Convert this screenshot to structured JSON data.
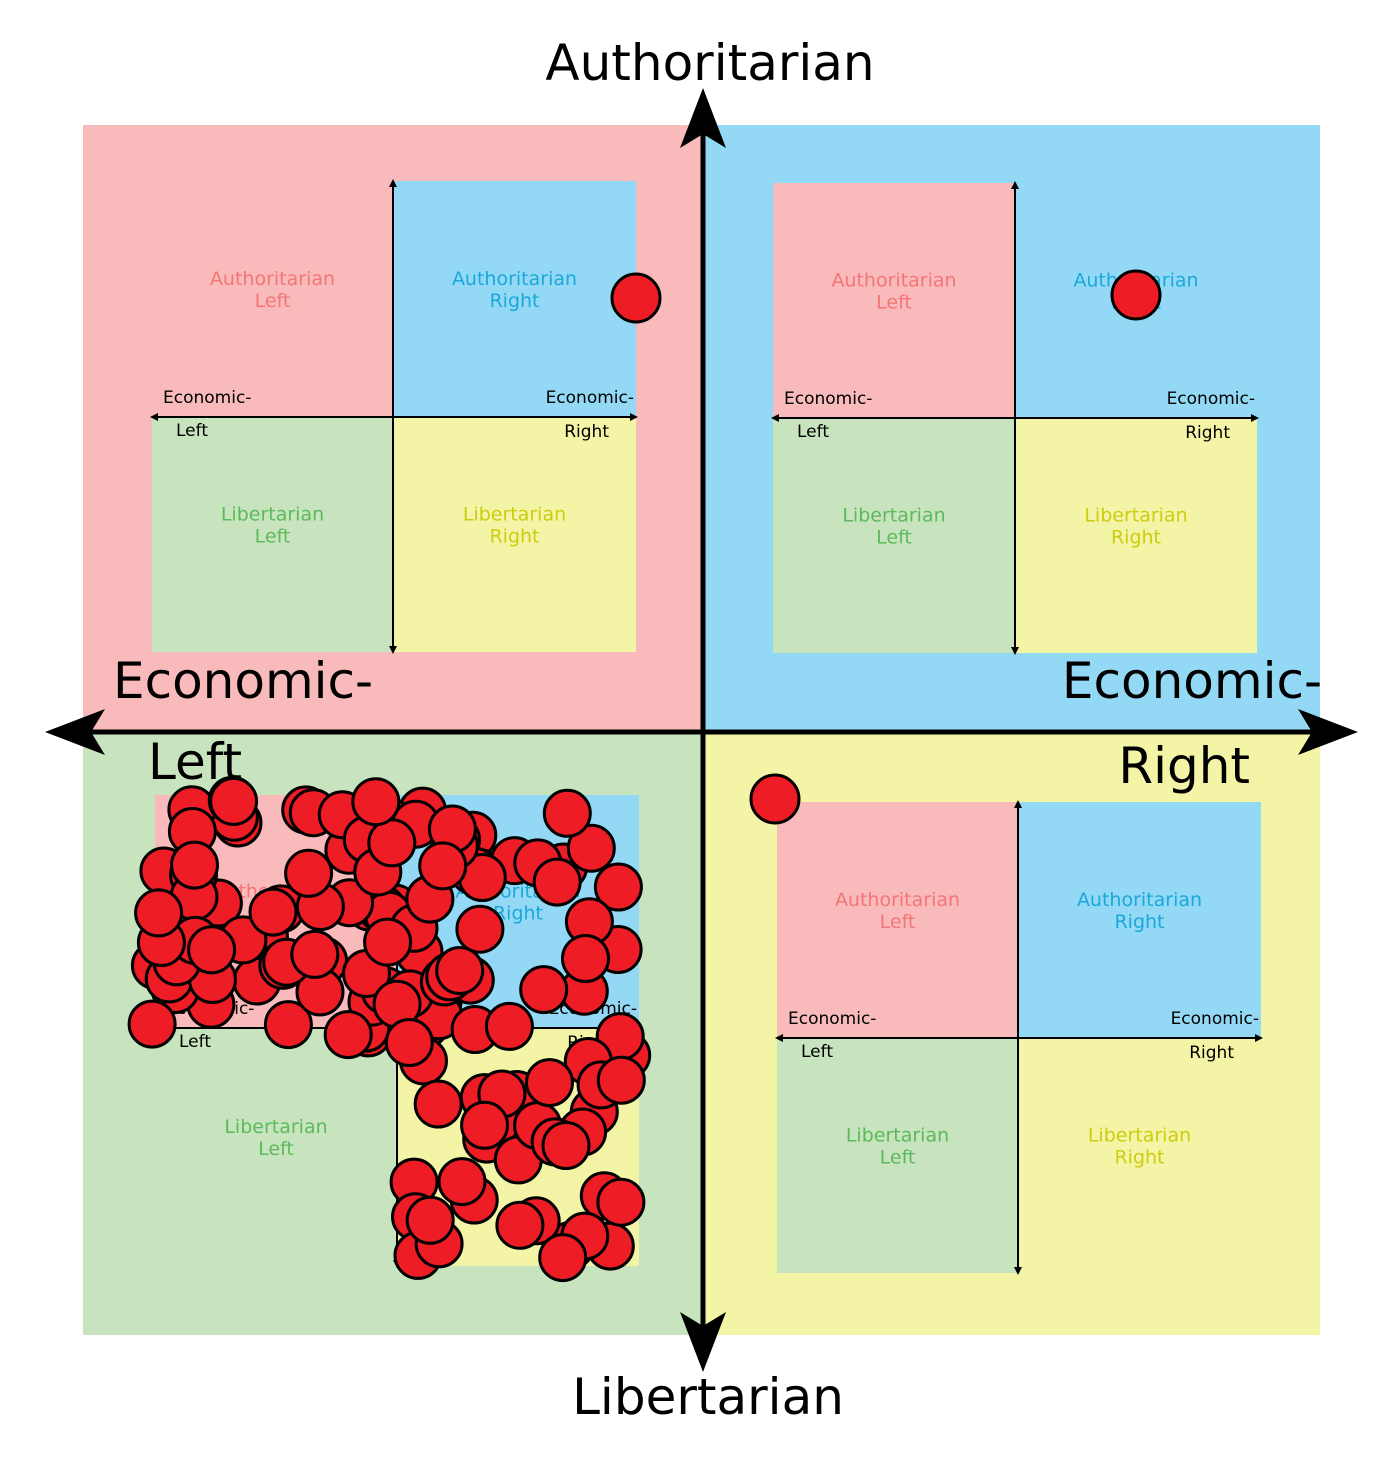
{
  "axes": {
    "top": "Authoritarian",
    "bottom": "Libertarian",
    "left_line1": "Economic-",
    "left_line2": "Left",
    "right_line1": "Economic-",
    "right_line2": "Right"
  },
  "mini_labels": {
    "auth_left": [
      "Authoritarian",
      "Left"
    ],
    "auth_right": [
      "Authoritarian",
      "Right"
    ],
    "lib_left": [
      "Libertarian",
      "Left"
    ],
    "lib_right": [
      "Libertarian",
      "Right"
    ],
    "econ_left": [
      "Economic-",
      "Left"
    ],
    "econ_right": [
      "Economic-",
      "Right"
    ]
  },
  "colors": {
    "auth_left": "#f8baba",
    "auth_right": "#93d9f6",
    "lib_left": "#c8e4be",
    "lib_right": "#f4f4a6",
    "auth_left_text": "#f47676",
    "auth_right_text": "#1aa8da",
    "lib_left_text": "#5cba5c",
    "lib_right_text": "#cccc10",
    "dot": "#ee1c24"
  },
  "dot_counts": {
    "auth_left_panel": 1,
    "auth_right_panel": 1,
    "lib_right_panel": 1,
    "lib_left_panel": 138
  }
}
